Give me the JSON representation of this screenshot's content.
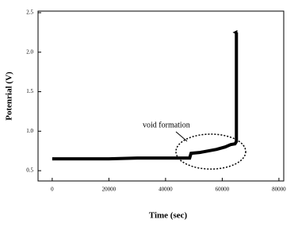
{
  "chart_data": {
    "type": "line",
    "x_label": "Time (sec)",
    "y_label": "Potenrial (V)",
    "annotation": "void formation",
    "x": [
      0,
      10000,
      20000,
      30000,
      40000,
      48500,
      49000,
      52000,
      55000,
      58000,
      61000,
      63000,
      64500,
      65000,
      65000
    ],
    "series": [
      {
        "color": "#000000",
        "values": [
          0.65,
          0.65,
          0.65,
          0.66,
          0.66,
          0.66,
          0.72,
          0.73,
          0.75,
          0.77,
          0.8,
          0.83,
          0.84,
          0.87,
          2.25
        ]
      }
    ],
    "xlim": [
      -5000,
      81700
    ],
    "ylim": [
      0.37,
      2.52
    ],
    "xticks": [
      0,
      20000,
      40000,
      60000,
      80000
    ],
    "yticks": [
      0.5,
      {
        "value": 1,
        "label": "1.0"
      },
      1.5,
      {
        "value": 2,
        "label": "2.0"
      },
      2.5
    ]
  }
}
